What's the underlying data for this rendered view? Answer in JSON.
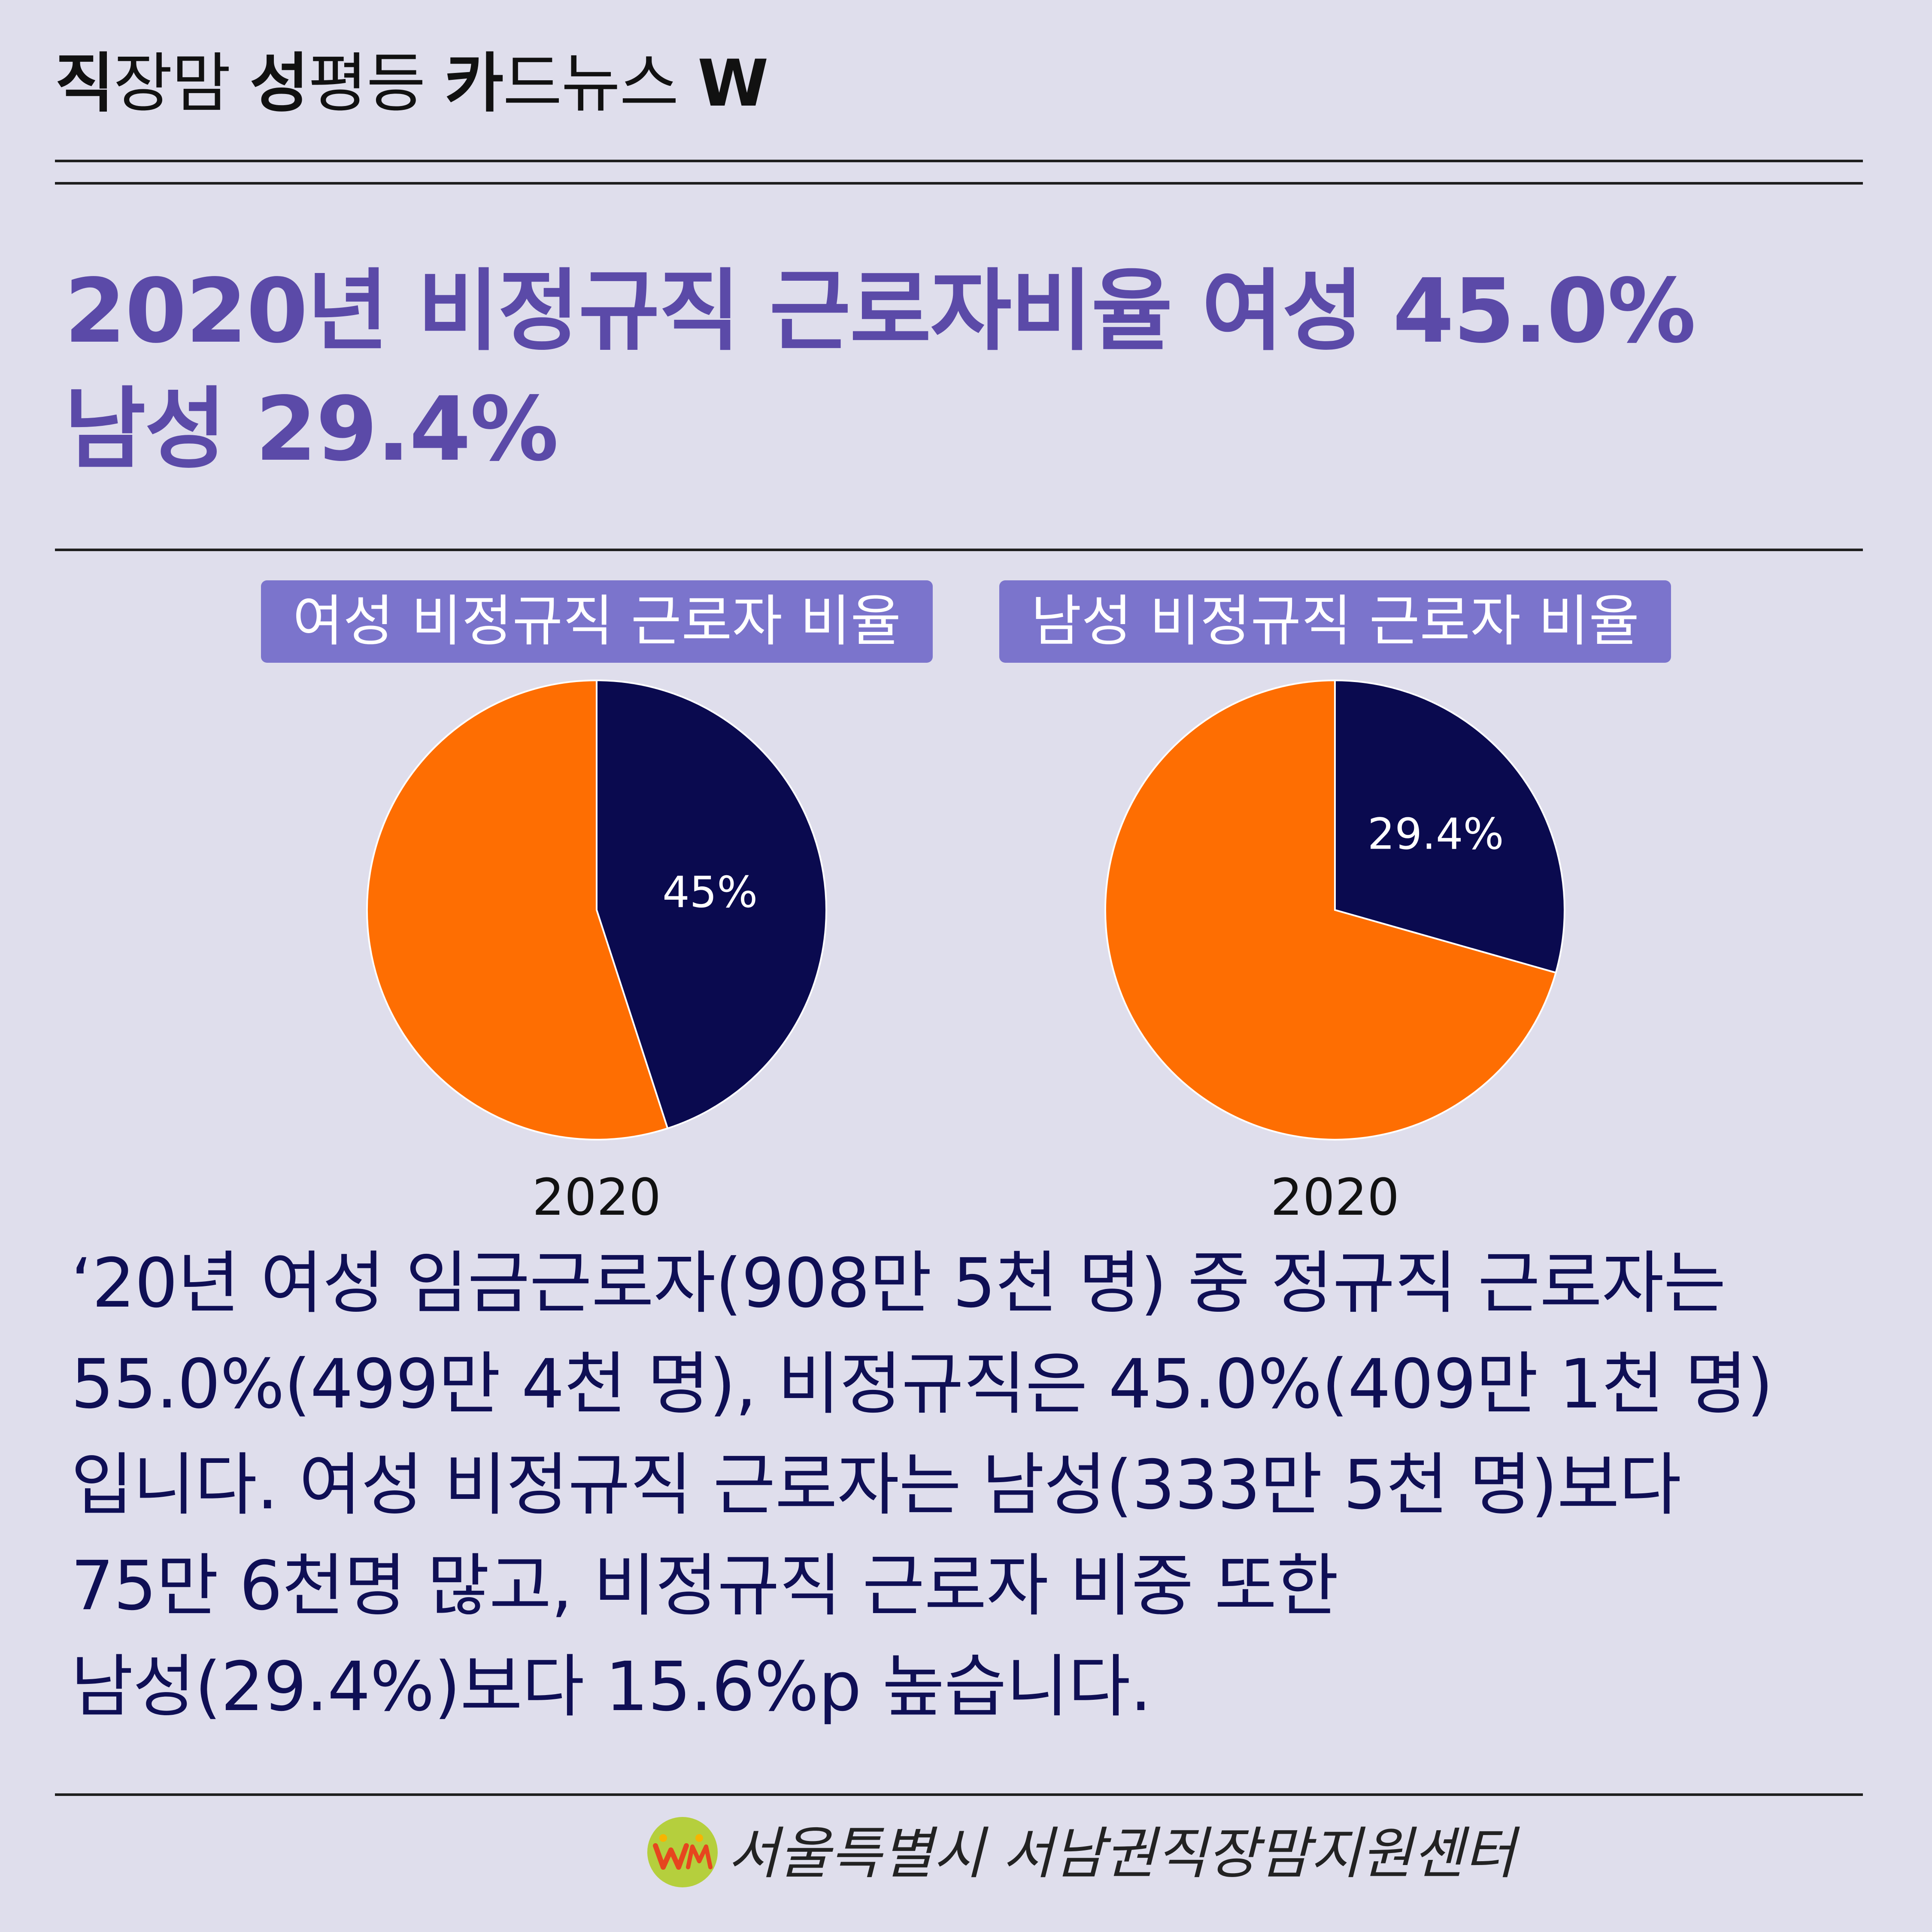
{
  "header": {
    "series_title_parts": [
      {
        "text": "직",
        "bold": true
      },
      {
        "text": "장맘 ",
        "bold": false
      },
      {
        "text": "성",
        "bold": true
      },
      {
        "text": "평등 ",
        "bold": false
      },
      {
        "text": "카",
        "bold": true
      },
      {
        "text": "드뉴스 ",
        "bold": false
      },
      {
        "text": "W",
        "bold": true
      }
    ]
  },
  "headline": {
    "line1": "2020년 비정규직 근로자비율 여성 45.0%",
    "line2": "남성 29.4%"
  },
  "chart_data": [
    {
      "type": "pie",
      "title": "여성 비정규직 근로자 비율",
      "xlabel": "2020",
      "slices": [
        {
          "label": "45%",
          "value": 45.0,
          "color": "#0a0a4f"
        },
        {
          "label": "",
          "value": 55.0,
          "color": "#fe6e02"
        }
      ]
    },
    {
      "type": "pie",
      "title": "남성 비정규직 근로자 비율",
      "xlabel": "2020",
      "slices": [
        {
          "label": "29.4%",
          "value": 29.4,
          "color": "#0a0a4f"
        },
        {
          "label": "",
          "value": 70.6,
          "color": "#fe6e02"
        }
      ]
    }
  ],
  "body": {
    "lines": [
      "‘20년 여성 임금근로자(908만 5천 명) 중 정규직 근로자는",
      "55.0%(499만 4천 명), 비정규직은 45.0%(409만 1천 명)",
      "입니다. 여성 비정규직 근로자는 남성(333만 5천 명)보다",
      "75만 6천명 많고, 비정규직 근로자 비중 또한",
      "남성(29.4%)보다 15.6%p 높습니다."
    ]
  },
  "footer": {
    "organization": "서울특별시 서남권직장맘지원센터",
    "logo_icon": "wm-logo-icon"
  },
  "colors": {
    "background": "#dfdeec",
    "headline": "#5b4aa8",
    "label_box": "#7b74cc",
    "pie_navy": "#0a0a4f",
    "pie_orange": "#fe6e02",
    "body_text": "#0f0f55"
  }
}
